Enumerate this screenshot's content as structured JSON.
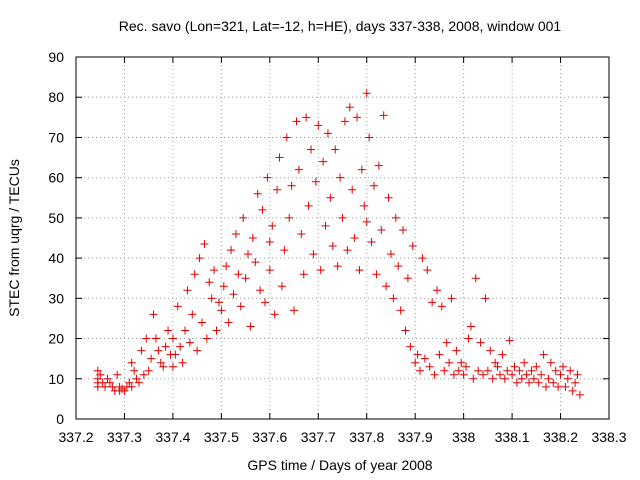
{
  "chart_data": {
    "type": "scatter",
    "title": "Rec. savo (Lon=321, Lat=-12, h=HE), days 337-338, 2008, window 001",
    "xlabel": "GPS time / Days of year 2008",
    "ylabel": "STEC from uqrg / TECUs",
    "xlim": [
      337.2,
      338.3
    ],
    "ylim": [
      0,
      90
    ],
    "x_ticks": [
      "337.2",
      "337.3",
      "337.4",
      "337.5",
      "337.6",
      "337.7",
      "337.8",
      "337.9",
      "338",
      "338.1",
      "338.2",
      "338.3"
    ],
    "y_ticks": [
      "0",
      "10",
      "20",
      "30",
      "40",
      "50",
      "60",
      "70",
      "80",
      "90"
    ],
    "grid": true,
    "marker": "plus",
    "series_color": "#e00000",
    "series": [
      {
        "points": [
          [
            337.245,
            12
          ],
          [
            337.245,
            10
          ],
          [
            337.245,
            9
          ],
          [
            337.245,
            8
          ],
          [
            337.25,
            11
          ],
          [
            337.255,
            9
          ],
          [
            337.26,
            8
          ],
          [
            337.265,
            10
          ],
          [
            337.27,
            9
          ],
          [
            337.275,
            8
          ],
          [
            337.28,
            7
          ],
          [
            337.285,
            11
          ],
          [
            337.29,
            8
          ],
          [
            337.29,
            7
          ],
          [
            337.295,
            7.5
          ],
          [
            337.3,
            7
          ],
          [
            337.305,
            8
          ],
          [
            337.31,
            9
          ],
          [
            337.315,
            8
          ],
          [
            337.315,
            14
          ],
          [
            337.32,
            12
          ],
          [
            337.325,
            10
          ],
          [
            337.33,
            9
          ],
          [
            337.335,
            17
          ],
          [
            337.34,
            11
          ],
          [
            337.345,
            20
          ],
          [
            337.35,
            12
          ],
          [
            337.355,
            15
          ],
          [
            337.36,
            26
          ],
          [
            337.365,
            20
          ],
          [
            337.37,
            17
          ],
          [
            337.375,
            14
          ],
          [
            337.38,
            13
          ],
          [
            337.385,
            18
          ],
          [
            337.39,
            22
          ],
          [
            337.395,
            16
          ],
          [
            337.4,
            13
          ],
          [
            337.4,
            20
          ],
          [
            337.405,
            16
          ],
          [
            337.41,
            28
          ],
          [
            337.415,
            18
          ],
          [
            337.42,
            14
          ],
          [
            337.425,
            22
          ],
          [
            337.43,
            32
          ],
          [
            337.435,
            19
          ],
          [
            337.44,
            26
          ],
          [
            337.445,
            36
          ],
          [
            337.45,
            17
          ],
          [
            337.455,
            40
          ],
          [
            337.46,
            24
          ],
          [
            337.465,
            43.5
          ],
          [
            337.47,
            20
          ],
          [
            337.475,
            34
          ],
          [
            337.48,
            30
          ],
          [
            337.485,
            37
          ],
          [
            337.49,
            22
          ],
          [
            337.495,
            29
          ],
          [
            337.5,
            27
          ],
          [
            337.505,
            33
          ],
          [
            337.51,
            38
          ],
          [
            337.515,
            24
          ],
          [
            337.52,
            42
          ],
          [
            337.525,
            31
          ],
          [
            337.53,
            46
          ],
          [
            337.535,
            36
          ],
          [
            337.54,
            28
          ],
          [
            337.545,
            50
          ],
          [
            337.55,
            35
          ],
          [
            337.555,
            41
          ],
          [
            337.56,
            23
          ],
          [
            337.565,
            45
          ],
          [
            337.57,
            39
          ],
          [
            337.575,
            56
          ],
          [
            337.58,
            32
          ],
          [
            337.585,
            52
          ],
          [
            337.59,
            29
          ],
          [
            337.595,
            60
          ],
          [
            337.6,
            37
          ],
          [
            337.6,
            44
          ],
          [
            337.605,
            48
          ],
          [
            337.61,
            26
          ],
          [
            337.615,
            57
          ],
          [
            337.62,
            65
          ],
          [
            337.625,
            33
          ],
          [
            337.63,
            42
          ],
          [
            337.635,
            70
          ],
          [
            337.64,
            50
          ],
          [
            337.645,
            58
          ],
          [
            337.65,
            27
          ],
          [
            337.655,
            74
          ],
          [
            337.66,
            62
          ],
          [
            337.665,
            46
          ],
          [
            337.67,
            36
          ],
          [
            337.675,
            75
          ],
          [
            337.68,
            53
          ],
          [
            337.685,
            67
          ],
          [
            337.69,
            41
          ],
          [
            337.695,
            59
          ],
          [
            337.7,
            73
          ],
          [
            337.705,
            37
          ],
          [
            337.71,
            64
          ],
          [
            337.715,
            48
          ],
          [
            337.72,
            71
          ],
          [
            337.725,
            55
          ],
          [
            337.73,
            43
          ],
          [
            337.735,
            67
          ],
          [
            337.74,
            38
          ],
          [
            337.745,
            60
          ],
          [
            337.75,
            50
          ],
          [
            337.755,
            74
          ],
          [
            337.76,
            42
          ],
          [
            337.765,
            77.5
          ],
          [
            337.77,
            57
          ],
          [
            337.775,
            45
          ],
          [
            337.78,
            75
          ],
          [
            337.785,
            37
          ],
          [
            337.79,
            62
          ],
          [
            337.795,
            53
          ],
          [
            337.8,
            81
          ],
          [
            337.8,
            49
          ],
          [
            337.805,
            70
          ],
          [
            337.81,
            44
          ],
          [
            337.815,
            58
          ],
          [
            337.82,
            36
          ],
          [
            337.825,
            63
          ],
          [
            337.83,
            47
          ],
          [
            337.835,
            75.5
          ],
          [
            337.84,
            33
          ],
          [
            337.845,
            55
          ],
          [
            337.85,
            41
          ],
          [
            337.855,
            30
          ],
          [
            337.86,
            50
          ],
          [
            337.865,
            38
          ],
          [
            337.87,
            27
          ],
          [
            337.875,
            47
          ],
          [
            337.88,
            22
          ],
          [
            337.885,
            35
          ],
          [
            337.89,
            18
          ],
          [
            337.895,
            43
          ],
          [
            337.9,
            14
          ],
          [
            337.905,
            16
          ],
          [
            337.91,
            12
          ],
          [
            337.915,
            40
          ],
          [
            337.92,
            15
          ],
          [
            337.925,
            37
          ],
          [
            337.93,
            13
          ],
          [
            337.935,
            29
          ],
          [
            337.94,
            11
          ],
          [
            337.945,
            32
          ],
          [
            337.95,
            16
          ],
          [
            337.955,
            28
          ],
          [
            337.96,
            12
          ],
          [
            337.965,
            19
          ],
          [
            337.97,
            14
          ],
          [
            337.975,
            30
          ],
          [
            337.98,
            11
          ],
          [
            337.985,
            17
          ],
          [
            337.99,
            12
          ],
          [
            337.995,
            14
          ],
          [
            338.0,
            11
          ],
          [
            338.005,
            13
          ],
          [
            338.01,
            20
          ],
          [
            338.015,
            23
          ],
          [
            338.02,
            10
          ],
          [
            338.025,
            35
          ],
          [
            338.03,
            12
          ],
          [
            338.035,
            19
          ],
          [
            338.04,
            11
          ],
          [
            338.045,
            30
          ],
          [
            338.05,
            12
          ],
          [
            338.055,
            17
          ],
          [
            338.06,
            10
          ],
          [
            338.065,
            14
          ],
          [
            338.07,
            13
          ],
          [
            338.075,
            11
          ],
          [
            338.08,
            16
          ],
          [
            338.085,
            10
          ],
          [
            338.09,
            12
          ],
          [
            338.095,
            19.5
          ],
          [
            338.1,
            11
          ],
          [
            338.105,
            13
          ],
          [
            338.11,
            9
          ],
          [
            338.115,
            12
          ],
          [
            338.12,
            10
          ],
          [
            338.125,
            14
          ],
          [
            338.13,
            11
          ],
          [
            338.135,
            9
          ],
          [
            338.14,
            12
          ],
          [
            338.145,
            10
          ],
          [
            338.15,
            13
          ],
          [
            338.155,
            9
          ],
          [
            338.16,
            11
          ],
          [
            338.165,
            16
          ],
          [
            338.17,
            8
          ],
          [
            338.175,
            10
          ],
          [
            338.18,
            14
          ],
          [
            338.185,
            9
          ],
          [
            338.19,
            12
          ],
          [
            338.195,
            8
          ],
          [
            338.2,
            11
          ],
          [
            338.205,
            13
          ],
          [
            338.21,
            8
          ],
          [
            338.215,
            10
          ],
          [
            338.22,
            12
          ],
          [
            338.225,
            7
          ],
          [
            338.23,
            9
          ],
          [
            338.235,
            11
          ],
          [
            338.24,
            6
          ]
        ]
      }
    ]
  }
}
